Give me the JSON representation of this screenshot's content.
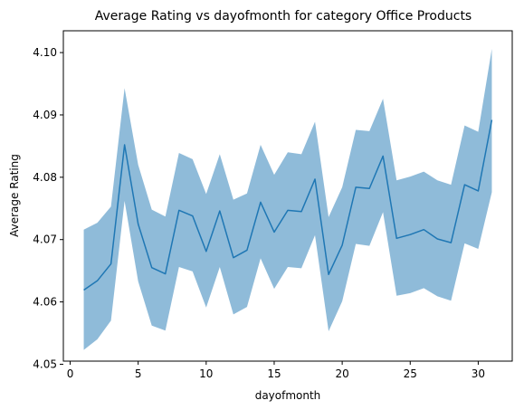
{
  "chart_data": {
    "type": "line",
    "title": "Average Rating vs dayofmonth for category Office Products",
    "xlabel": "dayofmonth",
    "ylabel": "Average Rating",
    "xlim": [
      -0.5,
      32.5
    ],
    "ylim": [
      4.0505,
      4.1035
    ],
    "xticks": [
      0,
      5,
      10,
      15,
      20,
      25,
      30
    ],
    "xtick_labels": [
      "0",
      "5",
      "10",
      "15",
      "20",
      "25",
      "30"
    ],
    "yticks": [
      4.05,
      4.06,
      4.07,
      4.08,
      4.09,
      4.1
    ],
    "ytick_labels": [
      "4.05",
      "4.06",
      "4.07",
      "4.08",
      "4.09",
      "4.10"
    ],
    "grid": false,
    "line_color": "#1f77b4",
    "band_color": "#1f77b4",
    "series": [
      {
        "x": [
          1,
          2,
          3,
          4,
          5,
          6,
          7,
          8,
          9,
          10,
          11,
          12,
          13,
          14,
          15,
          16,
          17,
          18,
          19,
          20,
          21,
          22,
          23,
          24,
          25,
          26,
          27,
          28,
          29,
          30,
          31
        ],
        "values": [
          4.0619,
          4.0634,
          4.0661,
          4.0852,
          4.0725,
          4.0655,
          4.0645,
          4.0747,
          4.0738,
          4.0681,
          4.0746,
          4.0671,
          4.0683,
          4.076,
          4.0712,
          4.0747,
          4.0745,
          4.0797,
          4.0644,
          4.0691,
          4.0784,
          4.0782,
          4.0834,
          4.0702,
          4.0708,
          4.0716,
          4.0701,
          4.0695,
          4.0788,
          4.0778,
          4.0892
        ],
        "ci_lower": [
          4.0523,
          4.054,
          4.057,
          4.0762,
          4.0633,
          4.0562,
          4.0554,
          4.0656,
          4.0649,
          4.0591,
          4.0656,
          4.058,
          4.0592,
          4.067,
          4.0621,
          4.0656,
          4.0654,
          4.0707,
          4.0553,
          4.0601,
          4.0693,
          4.069,
          4.0744,
          4.061,
          4.0614,
          4.0622,
          4.0609,
          4.0602,
          4.0694,
          4.0685,
          4.0776
        ],
        "ci_upper": [
          4.0716,
          4.0727,
          4.0753,
          4.0943,
          4.082,
          4.0748,
          4.0737,
          4.0839,
          4.0829,
          4.0773,
          4.0837,
          4.0764,
          4.0774,
          4.0852,
          4.0804,
          4.084,
          4.0837,
          4.0889,
          4.0736,
          4.0784,
          4.0876,
          4.0874,
          4.0926,
          4.0795,
          4.0801,
          4.0809,
          4.0795,
          4.0788,
          4.0883,
          4.0873,
          4.1006
        ]
      }
    ]
  }
}
